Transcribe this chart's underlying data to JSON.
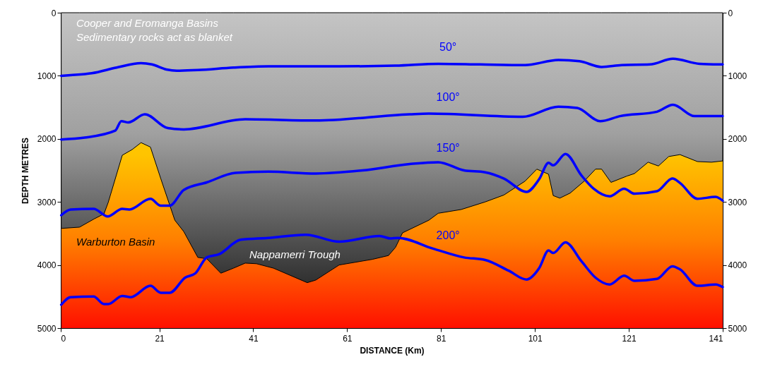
{
  "chart_data": {
    "type": "line",
    "xlabel": "DISTANCE (Km)",
    "ylabel": "DEPTH METRES",
    "xlim": [
      0,
      141
    ],
    "xticks": [
      0,
      21,
      41,
      61,
      81,
      101,
      121,
      141
    ],
    "ylim": [
      5000,
      0
    ],
    "yticks": [
      0,
      1000,
      2000,
      3000,
      4000,
      5000
    ],
    "y2lim": [
      5000,
      0
    ],
    "y2ticks": [
      0,
      1000,
      2000,
      3000,
      4000,
      5000
    ],
    "annotations": [
      "Cooper  and Eromanga Basins",
      "Sedimentary rocks act as blanket",
      "Warburton Basin",
      "Nappamerri Trough"
    ],
    "series": [
      {
        "type": "area",
        "color": "#000000",
        "x": [
          0.1,
          4.0,
          7.1,
          9.2,
          10.1,
          13.1,
          15.2,
          17.1,
          19.1,
          21.3,
          24.3,
          26.2,
          29.2,
          31.1,
          34.1,
          36.8,
          39.3,
          41.7,
          45.3,
          52.5,
          54.3,
          59.3,
          66.4,
          69.8,
          71.3,
          72.8,
          78.4,
          80.4,
          85.3,
          90.4,
          94.4,
          98.9,
          101.4,
          103.9,
          104.9,
          106.3,
          108.5,
          111.5,
          113.9,
          115.2,
          117.2,
          120.6,
          122.2,
          125.1,
          127.3,
          129.5,
          131.9,
          135.6,
          138.6,
          141
        ],
        "values": [
          3420,
          3400,
          3270,
          3190,
          3010,
          2260,
          2170,
          2060,
          2130,
          2630,
          3290,
          3470,
          3880,
          3900,
          4130,
          4050,
          3970,
          3980,
          4050,
          4280,
          4240,
          4000,
          3910,
          3850,
          3720,
          3490,
          3290,
          3180,
          3120,
          3000,
          2890,
          2670,
          2480,
          2560,
          2900,
          2940,
          2860,
          2670,
          2480,
          2480,
          2690,
          2590,
          2550,
          2370,
          2430,
          2280,
          2250,
          2360,
          2370,
          2350
        ]
      },
      {
        "name": "50°",
        "color": "#0000ff",
        "x": [
          0.1,
          2.1,
          6.6,
          11.9,
          17.1,
          19.4,
          22.5,
          24.7,
          29.2,
          36.8,
          44.2,
          51.8,
          59.3,
          71.3,
          80.4,
          89.3,
          98.9,
          106.0,
          110.5,
          115.2,
          119.5,
          125.5,
          130.4,
          136.1,
          141
        ],
        "values": [
          1000,
          990,
          960,
          870,
          800,
          820,
          900,
          920,
          910,
          870,
          850,
          850,
          850,
          840,
          810,
          820,
          830,
          750,
          770,
          860,
          830,
          820,
          730,
          810,
          820
        ]
      },
      {
        "name": "100°",
        "color": "#0000ff",
        "x": [
          0.1,
          5.1,
          11.6,
          12.9,
          14.4,
          17.9,
          22.8,
          26.2,
          39.3,
          54.3,
          74.3,
          78.4,
          98.4,
          106.0,
          110.0,
          114.9,
          119.1,
          127.0,
          130.4,
          135.0,
          141
        ],
        "values": [
          2010,
          1980,
          1870,
          1720,
          1740,
          1610,
          1830,
          1850,
          1690,
          1710,
          1610,
          1600,
          1650,
          1490,
          1510,
          1720,
          1640,
          1570,
          1460,
          1640,
          1640
        ]
      },
      {
        "name": "150°",
        "color": "#0000ff",
        "x": [
          0.1,
          2.1,
          7.0,
          10.0,
          13.1,
          14.6,
          19.1,
          21.3,
          23.2,
          26.2,
          31.1,
          37.2,
          44.2,
          54.3,
          64.3,
          74.3,
          80.4,
          85.9,
          90.4,
          94.4,
          99.2,
          101.9,
          103.9,
          104.9,
          107.5,
          110.9,
          113.5,
          116.9,
          120.0,
          122.2,
          127.0,
          130.3,
          131.9,
          135.6,
          139.5,
          141
        ],
        "values": [
          3210,
          3120,
          3110,
          3230,
          3110,
          3120,
          2950,
          3060,
          3060,
          2810,
          2690,
          2540,
          2520,
          2550,
          2500,
          2400,
          2370,
          2500,
          2530,
          2630,
          2840,
          2640,
          2380,
          2420,
          2240,
          2580,
          2790,
          2910,
          2790,
          2870,
          2830,
          2630,
          2700,
          2950,
          2920,
          2980
        ]
      },
      {
        "name": "200°",
        "color": "#0000ff",
        "x": [
          0.1,
          2.1,
          7.0,
          9.2,
          10.1,
          13.1,
          14.9,
          19.1,
          21.3,
          23.2,
          26.5,
          28.7,
          31.1,
          33.7,
          38.3,
          44.2,
          52.2,
          59.3,
          67.9,
          70.3,
          71.8,
          79.3,
          85.9,
          90.4,
          95.4,
          99.2,
          101.9,
          103.9,
          104.9,
          107.5,
          110.9,
          113.9,
          116.9,
          120.0,
          122.2,
          127.0,
          130.3,
          131.9,
          135.6,
          139.5,
          141
        ],
        "values": [
          4630,
          4510,
          4500,
          4620,
          4620,
          4490,
          4510,
          4330,
          4440,
          4440,
          4200,
          4130,
          3880,
          3830,
          3600,
          3570,
          3520,
          3630,
          3540,
          3580,
          3570,
          3740,
          3880,
          3920,
          4090,
          4230,
          4050,
          3770,
          3810,
          3640,
          3940,
          4200,
          4310,
          4170,
          4250,
          4220,
          4020,
          4070,
          4330,
          4310,
          4350
        ]
      }
    ]
  }
}
